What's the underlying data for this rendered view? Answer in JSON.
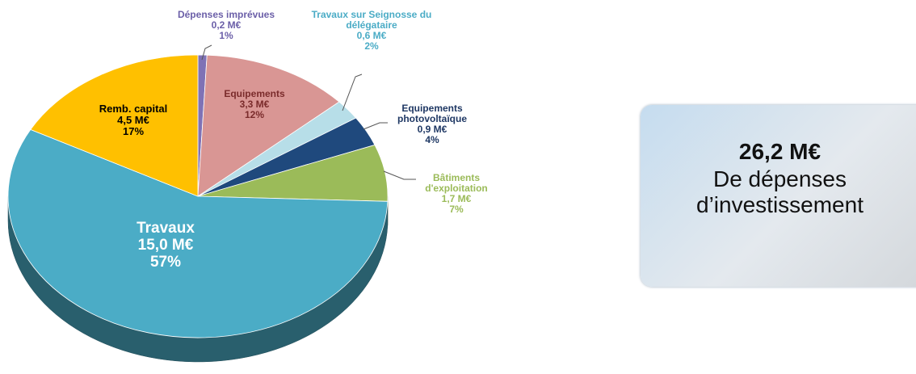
{
  "chart_data": {
    "type": "pie",
    "categories": [
      "Dépenses imprévues",
      "Equipements",
      "Travaux sur Seignosse du délégataire",
      "Equipements photovoltaïque",
      "Bâtiments d'exploitation",
      "Travaux",
      "Remb. capital"
    ],
    "values": [
      0.2,
      3.3,
      0.6,
      0.9,
      1.7,
      15.0,
      4.5
    ],
    "value_labels": [
      "0,2 M€",
      "3,3 M€",
      "0,6 M€",
      "0,9 M€",
      "1,7 M€",
      "15,0 M€",
      "4,5 M€"
    ],
    "percents": [
      1,
      12,
      2,
      4,
      7,
      57,
      17
    ],
    "percent_labels": [
      "1%",
      "12%",
      "2%",
      "4%",
      "7%",
      "57%",
      "17%"
    ],
    "colors": [
      "#7f72b5",
      "#d99694",
      "#b7dee8",
      "#1f497d",
      "#9bbb59",
      "#4bacc6",
      "#ffc000"
    ],
    "label_colors": [
      "#6b5fa8",
      "#7a2b2b",
      "#4bacc6",
      "#1f3864",
      "#9bbb59",
      "#ffffff",
      "#000000"
    ]
  },
  "summary": {
    "total": "26,2 M€",
    "caption": "De dépenses d’investissement"
  }
}
